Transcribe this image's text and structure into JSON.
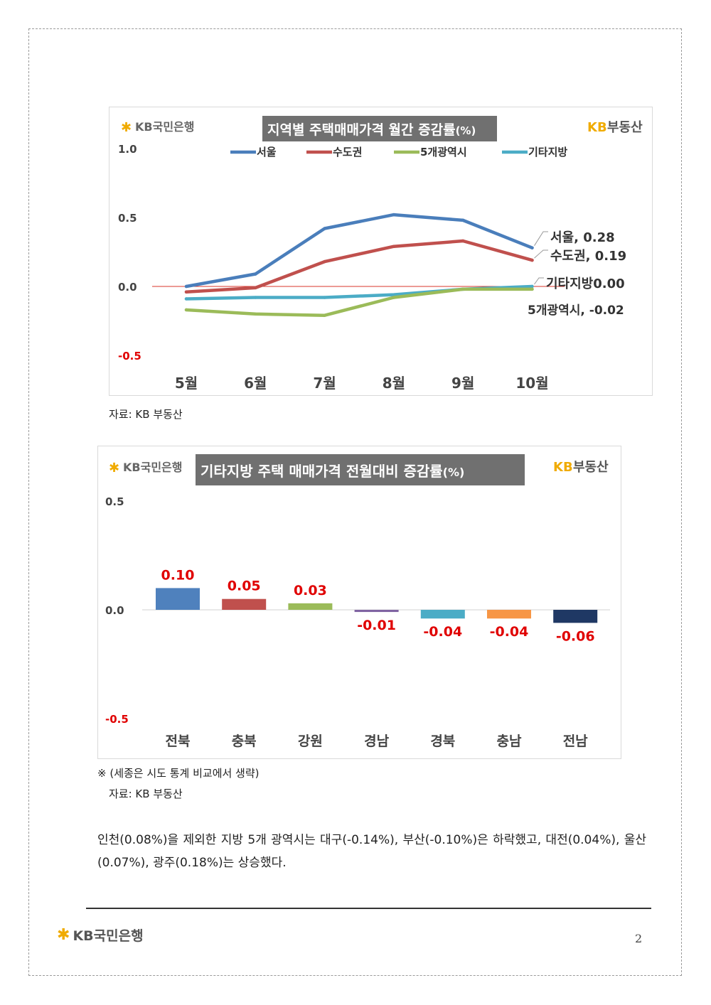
{
  "bank_logo": "KB국민은행",
  "brand_logo": {
    "kb": "KB",
    "name": "부동산"
  },
  "chart1": {
    "title_main": "지역별 주택매매가격 월간 증감률",
    "title_unit": "(%)",
    "source": "자료: KB 부동산"
  },
  "chart2": {
    "title_main": "기타지방 주택 매매가격 전월대비 증감률",
    "title_unit": "(%)",
    "note": "※ (세종은 시도 통계 비교에서 생략)",
    "source": "자료: KB 부동산"
  },
  "paragraph": "인천(0.08%)을 제외한 지방 5개 광역시는 대구(-0.14%), 부산(-0.10%)은 하락했고, 대전(0.04%), 울산(0.07%), 광주(0.18%)는 상승했다.",
  "page_number": "2",
  "chart_data": [
    {
      "type": "line",
      "title": "지역별 주택매매가격 월간 증감률(%)",
      "x": [
        "5월",
        "6월",
        "7월",
        "8월",
        "9월",
        "10월"
      ],
      "ylim": [
        -0.5,
        1.0
      ],
      "yticks": [
        "1.0",
        "0.5",
        "0.0",
        "-0.5"
      ],
      "grid": false,
      "legend_position": "top",
      "series": [
        {
          "name": "서울",
          "color": "#4a7ebb",
          "values": [
            0.0,
            0.09,
            0.42,
            0.52,
            0.48,
            0.28
          ],
          "end_label": "서울, 0.28"
        },
        {
          "name": "수도권",
          "color": "#c0504d",
          "values": [
            -0.04,
            -0.01,
            0.18,
            0.29,
            0.33,
            0.19
          ],
          "end_label": "수도권, 0.19"
        },
        {
          "name": "5개광역시",
          "color": "#9bbb59",
          "values": [
            -0.17,
            -0.2,
            -0.21,
            -0.08,
            -0.02,
            -0.02
          ],
          "end_label": "5개광역시, -0.02"
        },
        {
          "name": "기타지방",
          "color": "#4bacc6",
          "values": [
            -0.09,
            -0.08,
            -0.08,
            -0.06,
            -0.02,
            0.0
          ],
          "end_label": "기타지방0.00"
        }
      ]
    },
    {
      "type": "bar",
      "title": "기타지방 주택 매매가격 전월대비 증감률(%)",
      "categories": [
        "전북",
        "충북",
        "강원",
        "경남",
        "경북",
        "충남",
        "전남"
      ],
      "values": [
        0.1,
        0.05,
        0.03,
        -0.01,
        -0.04,
        -0.04,
        -0.06
      ],
      "labels": [
        "0.10",
        "0.05",
        "0.03",
        "-0.01",
        "-0.04",
        "-0.04",
        "-0.06"
      ],
      "colors": [
        "#4f81bd",
        "#c0504d",
        "#9bbb59",
        "#8064a2",
        "#4bacc6",
        "#f79646",
        "#1f3864"
      ],
      "ylim": [
        -0.5,
        0.5
      ],
      "yticks": [
        "0.5",
        "0.0",
        "-0.5"
      ],
      "grid": false
    }
  ]
}
